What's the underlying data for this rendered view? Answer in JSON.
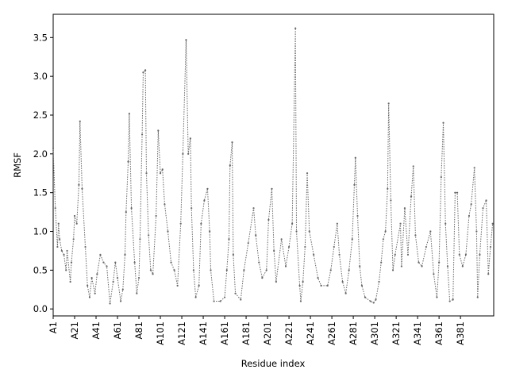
{
  "chart_data": {
    "type": "line",
    "xlabel": "Residue index",
    "ylabel": "RMSF",
    "color": "#666666",
    "x": [
      1,
      3,
      5,
      6,
      7,
      9,
      11,
      13,
      14,
      17,
      18,
      20,
      21,
      23,
      25,
      26,
      28,
      31,
      33,
      35,
      37,
      40,
      42,
      45,
      48,
      51,
      54,
      57,
      59,
      61,
      64,
      66,
      68,
      69,
      71,
      72,
      74,
      77,
      79,
      81,
      82,
      84,
      85,
      87,
      88,
      90,
      92,
      94,
      97,
      99,
      101,
      103,
      105,
      108,
      111,
      114,
      117,
      120,
      122,
      125,
      127,
      129,
      130,
      132,
      134,
      137,
      139,
      142,
      145,
      147,
      148,
      151,
      157,
      161,
      163,
      165,
      166,
      168,
      169,
      171,
      176,
      179,
      183,
      188,
      190,
      193,
      196,
      200,
      202,
      205,
      207,
      209,
      214,
      218,
      221,
      224,
      227,
      228,
      231,
      232,
      234,
      236,
      238,
      240,
      244,
      248,
      251,
      257,
      260,
      263,
      266,
      268,
      271,
      274,
      277,
      280,
      282,
      283,
      285,
      287,
      289,
      292,
      297,
      300,
      302,
      305,
      307,
      309,
      311,
      313,
      314,
      316,
      318,
      320,
      325,
      326,
      329,
      332,
      335,
      337,
      339,
      342,
      345,
      349,
      353,
      356,
      359,
      361,
      363,
      365,
      367,
      369,
      371,
      374,
      376,
      378,
      380,
      383,
      386,
      389,
      391,
      394,
      396,
      397,
      399,
      402,
      405,
      407,
      409,
      411
    ],
    "values": [
      2.07,
      1.3,
      0.8,
      1.1,
      0.9,
      0.75,
      0.7,
      0.5,
      0.75,
      0.35,
      0.6,
      0.9,
      1.2,
      1.1,
      1.6,
      2.42,
      1.55,
      0.8,
      0.3,
      0.15,
      0.4,
      0.2,
      0.45,
      0.7,
      0.6,
      0.55,
      0.07,
      0.35,
      0.6,
      0.4,
      0.1,
      0.25,
      0.7,
      1.25,
      1.9,
      2.52,
      1.3,
      0.6,
      0.2,
      0.4,
      0.9,
      2.25,
      3.05,
      3.08,
      1.75,
      0.95,
      0.5,
      0.45,
      1.2,
      2.3,
      1.75,
      1.8,
      1.35,
      1.0,
      0.6,
      0.5,
      0.3,
      1.1,
      2.0,
      3.47,
      2.0,
      2.2,
      1.3,
      0.5,
      0.15,
      0.3,
      1.1,
      1.4,
      1.55,
      1.0,
      0.5,
      0.1,
      0.1,
      0.15,
      0.5,
      0.9,
      1.85,
      2.15,
      0.7,
      0.2,
      0.12,
      0.5,
      0.85,
      1.3,
      0.95,
      0.6,
      0.4,
      0.5,
      1.15,
      1.55,
      0.75,
      0.35,
      0.9,
      0.55,
      0.8,
      1.1,
      3.62,
      1.0,
      0.3,
      0.1,
      0.35,
      0.8,
      1.75,
      1.0,
      0.7,
      0.4,
      0.3,
      0.3,
      0.5,
      0.8,
      1.1,
      0.7,
      0.35,
      0.2,
      0.5,
      0.9,
      1.6,
      1.95,
      1.2,
      0.55,
      0.3,
      0.15,
      0.1,
      0.08,
      0.12,
      0.35,
      0.6,
      0.9,
      1.0,
      1.55,
      2.65,
      1.4,
      0.5,
      0.7,
      1.1,
      0.55,
      1.3,
      0.7,
      1.45,
      1.84,
      0.95,
      0.6,
      0.55,
      0.8,
      1.0,
      0.45,
      0.15,
      0.6,
      1.7,
      2.4,
      1.1,
      0.55,
      0.1,
      0.12,
      1.5,
      1.5,
      0.7,
      0.55,
      0.7,
      1.2,
      1.35,
      1.82,
      1.0,
      0.15,
      0.7,
      1.3,
      1.4,
      0.45,
      0.8,
      1.1
    ],
    "xlim": [
      1,
      412
    ],
    "ylim": [
      -0.09,
      3.8
    ],
    "xticks": [
      {
        "value": 1,
        "label": "A1"
      },
      {
        "value": 21,
        "label": "A21"
      },
      {
        "value": 41,
        "label": "A41"
      },
      {
        "value": 61,
        "label": "A61"
      },
      {
        "value": 81,
        "label": "A81"
      },
      {
        "value": 101,
        "label": "A101"
      },
      {
        "value": 121,
        "label": "A121"
      },
      {
        "value": 141,
        "label": "A141"
      },
      {
        "value": 161,
        "label": "A161"
      },
      {
        "value": 181,
        "label": "A181"
      },
      {
        "value": 201,
        "label": "A201"
      },
      {
        "value": 221,
        "label": "A221"
      },
      {
        "value": 241,
        "label": "A241"
      },
      {
        "value": 261,
        "label": "A261"
      },
      {
        "value": 281,
        "label": "A281"
      },
      {
        "value": 301,
        "label": "A301"
      },
      {
        "value": 321,
        "label": "A321"
      },
      {
        "value": 341,
        "label": "A341"
      },
      {
        "value": 361,
        "label": "A361"
      },
      {
        "value": 381,
        "label": "A381"
      }
    ],
    "yticks": [
      {
        "value": 0,
        "label": "0.0"
      },
      0.5,
      {
        "value": 1,
        "label": "1.0"
      },
      1.5,
      {
        "value": 2,
        "label": "2.0"
      },
      2.5,
      {
        "value": 3,
        "label": "3.0"
      },
      3.5
    ]
  }
}
